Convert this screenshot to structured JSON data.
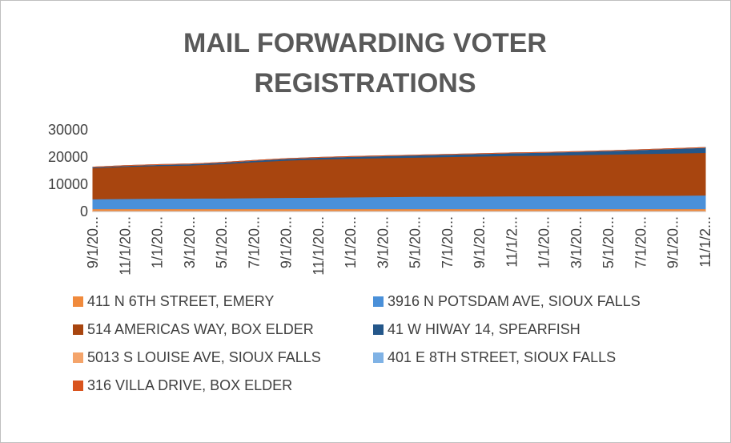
{
  "chart_data": {
    "type": "stacked_area",
    "title": "MAIL FORWARDING VOTER REGISTRATIONS",
    "categories": [
      "9/1/20...",
      "11/1/20...",
      "1/1/20...",
      "3/1/20...",
      "5/1/20...",
      "7/1/20...",
      "9/1/20...",
      "11/1/20...",
      "1/1/20...",
      "3/1/20...",
      "5/1/20...",
      "7/1/20...",
      "9/1/20...",
      "11/1/2...",
      "1/1/20...",
      "3/1/20...",
      "5/1/20...",
      "7/1/20...",
      "9/1/20...",
      "11/1/2..."
    ],
    "series": [
      {
        "name": "411 N 6TH STREET, EMERY",
        "color": "#f08a3c",
        "values": [
          1000,
          1000,
          1000,
          1000,
          1000,
          1000,
          1000,
          1000,
          1000,
          1000,
          1000,
          1000,
          1000,
          1000,
          1000,
          1000,
          1000,
          1000,
          1000,
          1000
        ]
      },
      {
        "name": "3916 N POTSDAM AVE, SIOUX FALLS",
        "color": "#4a90d9",
        "values": [
          3600,
          3700,
          3800,
          3850,
          3900,
          4000,
          4100,
          4200,
          4300,
          4400,
          4500,
          4550,
          4600,
          4650,
          4700,
          4750,
          4800,
          4850,
          4900,
          5000
        ]
      },
      {
        "name": "514 AMERICAS WAY, BOX ELDER",
        "color": "#a8450f",
        "values": [
          11400,
          11800,
          12000,
          12150,
          12600,
          13200,
          13700,
          14000,
          14200,
          14300,
          14400,
          14550,
          14700,
          14850,
          14900,
          15050,
          15200,
          15350,
          15500,
          15600
        ]
      },
      {
        "name": "41 W HIWAY 14, SPEARFISH",
        "color": "#24578a",
        "values": [
          300,
          350,
          400,
          450,
          500,
          550,
          600,
          650,
          700,
          750,
          800,
          850,
          900,
          1000,
          1100,
          1200,
          1300,
          1500,
          1700,
          1900
        ]
      },
      {
        "name": "5013 S LOUISE AVE, SIOUX FALLS",
        "color": "#f4a46a",
        "values": [
          0,
          0,
          0,
          0,
          0,
          0,
          0,
          0,
          0,
          0,
          0,
          0,
          0,
          0,
          0,
          0,
          0,
          0,
          0,
          0
        ]
      },
      {
        "name": "401 E 8TH STREET, SIOUX FALLS",
        "color": "#7fb2e5",
        "values": [
          0,
          0,
          0,
          0,
          0,
          0,
          0,
          0,
          0,
          0,
          0,
          0,
          0,
          0,
          0,
          0,
          0,
          0,
          0,
          0
        ]
      },
      {
        "name": "316 VILLA DRIVE, BOX ELDER",
        "color": "#d9541e",
        "values": [
          0,
          0,
          0,
          0,
          0,
          0,
          0,
          0,
          0,
          0,
          0,
          0,
          0,
          0,
          0,
          0,
          0,
          0,
          0,
          0
        ]
      }
    ],
    "ylim": [
      0,
      30000
    ],
    "yticks": [
      0,
      10000,
      20000,
      30000
    ],
    "grid": false
  }
}
